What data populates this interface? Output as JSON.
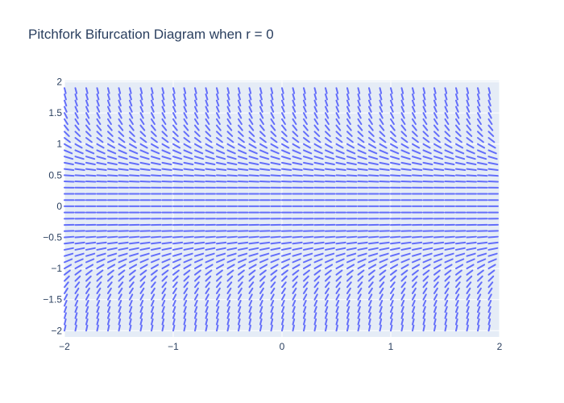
{
  "chart_data": {
    "type": "quiver",
    "title": "Pitchfork Bifurcation Diagram when r = 0",
    "xlabel": "",
    "ylabel": "",
    "xlim": [
      -2,
      2
    ],
    "ylim": [
      -2.1,
      2.02
    ],
    "x_ticks": [
      -2,
      -1,
      0,
      1,
      2
    ],
    "x_tick_labels": [
      "−2",
      "−1",
      "0",
      "1",
      "2"
    ],
    "y_ticks": [
      -2,
      -1.5,
      -1,
      -0.5,
      0,
      0.5,
      1,
      1.5,
      2
    ],
    "y_tick_labels": [
      "−2",
      "−1.5",
      "−1",
      "−0.5",
      "0",
      "0.5",
      "1",
      "1.5",
      "2"
    ],
    "grid": true,
    "r": 0,
    "field": {
      "x_range": [
        -2,
        1.9
      ],
      "x_count": 40,
      "y_range": [
        -2,
        1.9
      ],
      "y_count": 40
    },
    "series": [
      {
        "color": "#636efa"
      }
    ],
    "plot_bgcolor": "#e5ecf6",
    "grid_color": "#ffffff"
  }
}
